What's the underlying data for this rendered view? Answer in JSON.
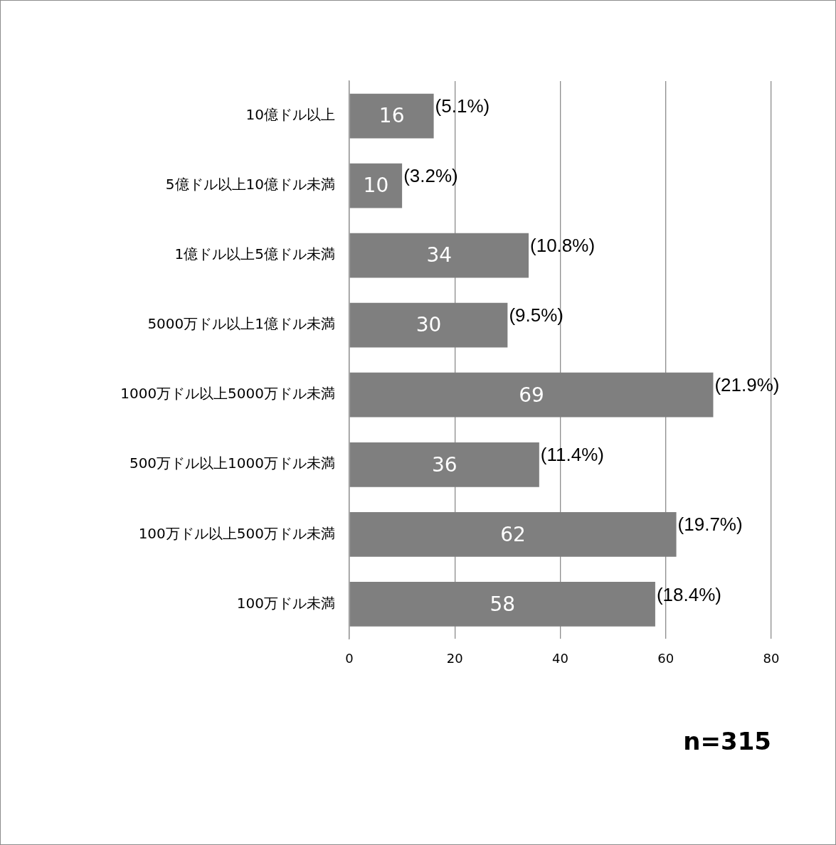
{
  "chart_data": {
    "type": "bar",
    "orientation": "horizontal",
    "categories": [
      "10億ドル以上",
      "5億ドル以上10億ドル未満",
      "1億ドル以上5億ドル未満",
      "5000万ドル以上1億ドル未満",
      "1000万ドル以上5000万ドル未満",
      "500万ドル以上1000万ドル未満",
      "100万ドル以上500万ドル未満",
      "100万ドル未満"
    ],
    "values": [
      16,
      10,
      34,
      30,
      69,
      36,
      62,
      58
    ],
    "color": "#7f7f7f",
    "xlim": [
      0,
      80
    ],
    "xticks": [
      0,
      20,
      40,
      60,
      80
    ],
    "grid": "x",
    "legend": false,
    "data_labels": true,
    "annotations": [
      {
        "text": "(5.1%)",
        "x": 16,
        "y": "10億ドル以上"
      },
      {
        "text": "(3.2%)",
        "x": 10,
        "y": "5億ドル以上10億ドル未満"
      },
      {
        "text": "(10.8%)",
        "x": 34,
        "y": "1億ドル以上5億ドル未満"
      },
      {
        "text": "(9.5%)",
        "x": 30,
        "y": "5000万ドル以上1億ドル未満"
      },
      {
        "text": "(21.9%)",
        "x": 69,
        "y": "1000万ドル以上5000万ドル未満"
      },
      {
        "text": "(11.4%)",
        "x": 36,
        "y": "500万ドル以上1000万ドル未満"
      },
      {
        "text": "(19.7%)",
        "x": 62,
        "y": "100万ドル以上500万ドル未満"
      },
      {
        "text": "(18.4%)",
        "x": 58,
        "y": "100万ドル未満"
      },
      "n=315"
    ]
  }
}
